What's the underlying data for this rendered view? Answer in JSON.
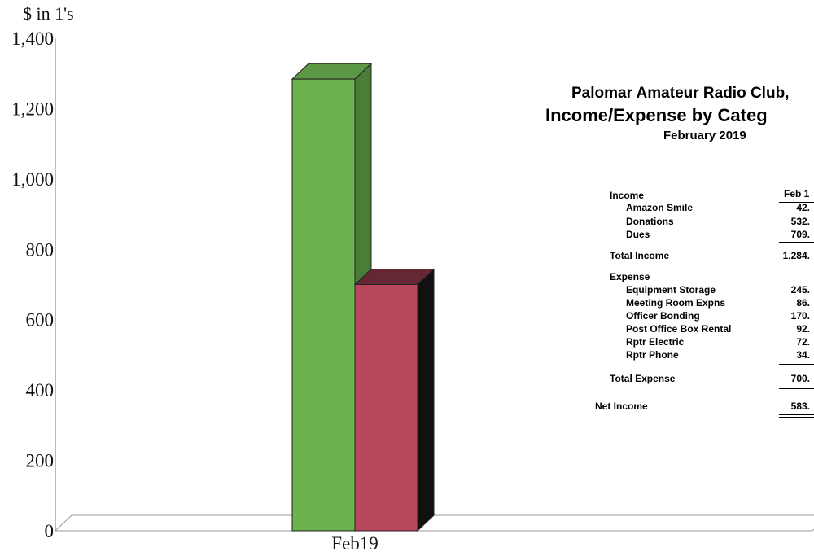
{
  "chart_data": {
    "type": "bar",
    "ylabel": "$ in 1's",
    "categories": [
      "Feb19"
    ],
    "series": [
      {
        "name": "Total Income",
        "values": [
          1284
        ],
        "color": "#6cb350"
      },
      {
        "name": "Total Expense",
        "values": [
          700
        ],
        "color": "#b8475c"
      }
    ],
    "ylim": [
      0,
      1400
    ],
    "yticks": [
      "0",
      "200",
      "400",
      "600",
      "800",
      "1,000",
      "1,200",
      "1,400"
    ],
    "grid": false,
    "legend": "none",
    "style": "3d"
  },
  "report": {
    "title_line1": "Palomar Amateur Radio Club,",
    "title_line2": "Income/Expense by Categ",
    "period": "February 2019",
    "column_header": "Feb 1",
    "income_heading": "Income",
    "income_rows": [
      {
        "label": "Amazon Smile",
        "value": "42."
      },
      {
        "label": "Donations",
        "value": "532."
      },
      {
        "label": "Dues",
        "value": "709."
      }
    ],
    "total_income_label": "Total Income",
    "total_income_value": "1,284.",
    "expense_heading": "Expense",
    "expense_rows": [
      {
        "label": "Equipment Storage",
        "value": "245."
      },
      {
        "label": "Meeting Room Expns",
        "value": "86."
      },
      {
        "label": "Officer Bonding",
        "value": "170."
      },
      {
        "label": "Post Office Box Rental",
        "value": "92."
      },
      {
        "label": "Rptr Electric",
        "value": "72."
      },
      {
        "label": "Rptr Phone",
        "value": "34."
      }
    ],
    "total_expense_label": "Total Expense",
    "total_expense_value": "700.",
    "net_income_label": "Net Income",
    "net_income_value": "583."
  }
}
